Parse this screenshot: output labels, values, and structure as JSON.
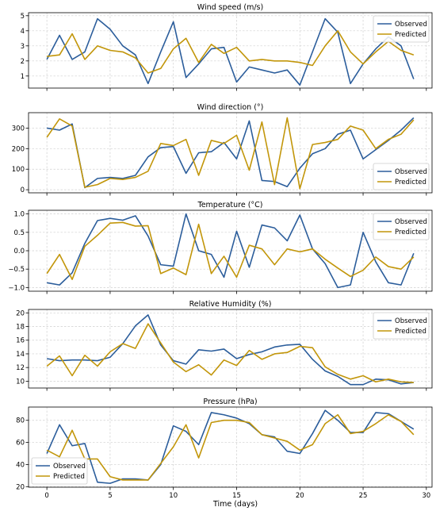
{
  "figure": {
    "xlabel": "Time (days)"
  },
  "colors": {
    "observed": "#2b5d9b",
    "predicted": "#c2960a"
  },
  "chart_data": [
    {
      "type": "line",
      "title": "Wind speed (m/s)",
      "xlim": [
        -1.45,
        30.45
      ],
      "ylim": [
        0.2,
        5.2
      ],
      "yticks": [
        1,
        2,
        3,
        4,
        5
      ],
      "xticks": [
        0,
        5,
        10,
        15,
        20,
        25,
        30
      ],
      "grid": true,
      "legend": "top-right",
      "x": [
        0,
        1,
        2,
        3,
        4,
        5,
        6,
        7,
        8,
        9,
        10,
        11,
        12,
        13,
        14,
        15,
        16,
        17,
        18,
        19,
        20,
        21,
        22,
        23,
        24,
        25,
        26,
        27,
        28,
        29
      ],
      "series": [
        {
          "name": "Observed",
          "values": [
            2.1,
            3.7,
            2.1,
            2.6,
            4.8,
            4.1,
            3.0,
            2.4,
            0.5,
            2.6,
            4.6,
            0.9,
            1.8,
            2.8,
            2.9,
            0.6,
            1.6,
            1.4,
            1.2,
            1.4,
            0.4,
            2.6,
            4.8,
            3.9,
            0.5,
            1.8,
            2.8,
            3.6,
            3.0,
            0.8
          ]
        },
        {
          "name": "Predicted",
          "values": [
            2.3,
            2.4,
            3.8,
            2.1,
            3.0,
            2.7,
            2.6,
            2.2,
            1.2,
            1.5,
            2.8,
            3.5,
            1.9,
            3.1,
            2.5,
            2.9,
            2.0,
            2.1,
            2.0,
            2.0,
            1.9,
            1.7,
            3.0,
            4.0,
            2.6,
            1.8,
            2.6,
            3.3,
            2.7,
            2.4
          ]
        }
      ]
    },
    {
      "type": "line",
      "title": "Wind direction (°)",
      "xlim": [
        -1.45,
        30.45
      ],
      "ylim": [
        -15,
        375
      ],
      "yticks": [
        0,
        100,
        200,
        300
      ],
      "xticks": [
        0,
        5,
        10,
        15,
        20,
        25,
        30
      ],
      "grid": true,
      "legend": "bottom-right",
      "x": [
        0,
        1,
        2,
        3,
        4,
        5,
        6,
        7,
        8,
        9,
        10,
        11,
        12,
        13,
        14,
        15,
        16,
        17,
        18,
        19,
        20,
        21,
        22,
        23,
        24,
        25,
        26,
        27,
        28,
        29
      ],
      "series": [
        {
          "name": "Observed",
          "values": [
            300,
            290,
            320,
            10,
            55,
            60,
            55,
            70,
            160,
            205,
            210,
            80,
            180,
            185,
            230,
            150,
            335,
            45,
            40,
            15,
            105,
            175,
            200,
            270,
            290,
            150,
            195,
            240,
            290,
            350
          ]
        },
        {
          "name": "Predicted",
          "values": [
            255,
            345,
            310,
            12,
            25,
            55,
            50,
            60,
            90,
            225,
            215,
            245,
            70,
            240,
            225,
            265,
            95,
            330,
            25,
            350,
            5,
            220,
            230,
            245,
            310,
            290,
            200,
            245,
            270,
            340
          ]
        }
      ]
    },
    {
      "type": "line",
      "title": "Temperature (°C)",
      "xlim": [
        -1.45,
        30.45
      ],
      "ylim": [
        -1.1,
        1.1
      ],
      "yticks": [
        -1.0,
        -0.5,
        0.0,
        0.5,
        1.0
      ],
      "ytick_labels": [
        "−1.0",
        "−0.5",
        "0.0",
        "0.5",
        "1.0"
      ],
      "xticks": [
        0,
        5,
        10,
        15,
        20,
        25,
        30
      ],
      "grid": true,
      "legend": "top-right",
      "x": [
        0,
        1,
        2,
        3,
        4,
        5,
        6,
        7,
        8,
        9,
        10,
        11,
        12,
        13,
        14,
        15,
        16,
        17,
        18,
        19,
        20,
        21,
        22,
        23,
        24,
        25,
        26,
        27,
        28,
        29
      ],
      "series": [
        {
          "name": "Observed",
          "values": [
            -0.87,
            -0.93,
            -0.6,
            0.2,
            0.82,
            0.88,
            0.83,
            0.95,
            0.4,
            -0.38,
            -0.42,
            1.0,
            0.0,
            -0.1,
            -0.72,
            0.53,
            -0.45,
            0.7,
            0.62,
            0.27,
            0.97,
            0.05,
            -0.35,
            -1.0,
            -0.93,
            0.5,
            -0.3,
            -0.87,
            -0.93,
            -0.07
          ]
        },
        {
          "name": "Predicted",
          "values": [
            -0.62,
            -0.1,
            -0.78,
            0.12,
            0.42,
            0.75,
            0.77,
            0.67,
            0.68,
            -0.62,
            -0.47,
            -0.65,
            0.72,
            -0.62,
            -0.15,
            -0.72,
            0.15,
            0.05,
            -0.38,
            0.05,
            -0.03,
            0.05,
            -0.23,
            -0.47,
            -0.7,
            -0.53,
            -0.17,
            -0.43,
            -0.5,
            -0.17
          ]
        }
      ]
    },
    {
      "type": "line",
      "title": "Relative Humidity (%)",
      "xlim": [
        -1.45,
        30.45
      ],
      "ylim": [
        9.0,
        20.5
      ],
      "yticks": [
        10,
        12,
        14,
        16,
        18,
        20
      ],
      "xticks": [
        0,
        5,
        10,
        15,
        20,
        25,
        30
      ],
      "grid": true,
      "legend": "top-right",
      "x": [
        0,
        1,
        2,
        3,
        4,
        5,
        6,
        7,
        8,
        9,
        10,
        11,
        12,
        13,
        14,
        15,
        16,
        17,
        18,
        19,
        20,
        21,
        22,
        23,
        24,
        25,
        26,
        27,
        28,
        29
      ],
      "series": [
        {
          "name": "Observed",
          "values": [
            13.3,
            13.0,
            13.1,
            13.1,
            13.0,
            13.5,
            15.5,
            18.1,
            19.7,
            15.3,
            13.0,
            12.5,
            14.6,
            14.4,
            14.7,
            13.3,
            13.9,
            14.3,
            15.0,
            15.3,
            15.4,
            13.2,
            11.5,
            10.7,
            9.5,
            9.5,
            10.3,
            10.2,
            9.6,
            9.8
          ]
        },
        {
          "name": "Predicted",
          "values": [
            12.2,
            13.7,
            10.8,
            13.8,
            12.2,
            14.3,
            15.5,
            14.8,
            18.4,
            15.6,
            12.8,
            11.4,
            12.4,
            10.9,
            13.1,
            12.3,
            14.5,
            13.2,
            14.0,
            14.2,
            15.1,
            14.9,
            12.1,
            11.0,
            10.3,
            10.8,
            9.9,
            10.3,
            9.9,
            9.8
          ]
        }
      ]
    },
    {
      "type": "line",
      "title": "Pressure (hPa)",
      "xlim": [
        -1.45,
        30.45
      ],
      "ylim": [
        19.5,
        92
      ],
      "yticks": [
        20,
        40,
        60,
        80
      ],
      "xticks": [
        0,
        5,
        10,
        15,
        20,
        25,
        30
      ],
      "xtick_labels": [
        "0",
        "5",
        "10",
        "15",
        "20",
        "25",
        "30"
      ],
      "grid": true,
      "legend": "bottom-left",
      "x": [
        0,
        1,
        2,
        3,
        4,
        5,
        6,
        7,
        8,
        9,
        10,
        11,
        12,
        13,
        14,
        15,
        16,
        17,
        18,
        19,
        20,
        21,
        22,
        23,
        24,
        25,
        26,
        27,
        28,
        29
      ],
      "series": [
        {
          "name": "Observed",
          "values": [
            50,
            76,
            57,
            59,
            24,
            23,
            27,
            27,
            26,
            40,
            75,
            70,
            58,
            87,
            85,
            82,
            77,
            67,
            65,
            52,
            50,
            68,
            89,
            80,
            69,
            69,
            87,
            86,
            79,
            72
          ]
        },
        {
          "name": "Predicted",
          "values": [
            53,
            47,
            71,
            45,
            45,
            29,
            26,
            26,
            26,
            41,
            56,
            76,
            46,
            78,
            80,
            80,
            78,
            67,
            64,
            61,
            53,
            58,
            77,
            85,
            68,
            70,
            77,
            85,
            79,
            67
          ]
        }
      ]
    }
  ]
}
